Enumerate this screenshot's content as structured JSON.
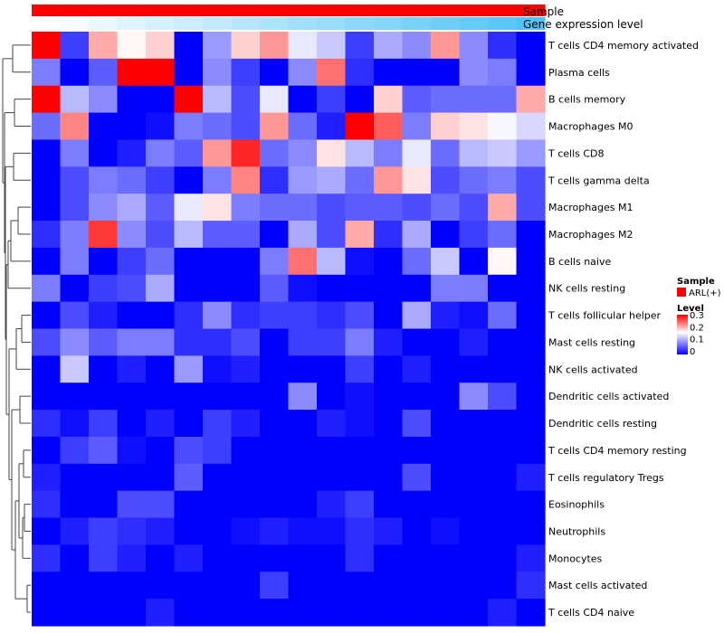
{
  "chart_data": {
    "type": "heatmap",
    "title": "",
    "annotation_tracks": [
      {
        "name": "Sample"
      },
      {
        "name": "Gene expression level"
      }
    ],
    "sample_group": "ARL(+)",
    "sample_color": "#ff0000",
    "gene_expression_ramp": [
      "#ffffff",
      "#4fc3f7"
    ],
    "colorscale": {
      "low": "#0000ff",
      "mid": "#ffffff",
      "high": "#ff0000",
      "min": 0,
      "max": 0.3
    },
    "legend": {
      "sample_title": "Sample",
      "sample_item": "ARL(+)",
      "level_title": "Level",
      "ticks": [
        "0.3",
        "0.2",
        "0.1",
        "0"
      ],
      "tick_values": [
        0.3,
        0.2,
        0.1,
        0
      ]
    },
    "columns": 18,
    "rows": [
      "T cells CD4 memory activated",
      "Plasma cells",
      "B cells memory",
      "Macrophages M0",
      "T cells CD8",
      "T cells gamma delta",
      "Macrophages M1",
      "Macrophages M2",
      "B cells naive",
      "NK cells resting",
      "T cells follicular helper",
      "Mast cells resting",
      "NK cells activated",
      "Dendritic cells activated",
      "Dendritic cells resting",
      "T cells CD4 memory resting",
      "T cells regulatory  Tregs",
      "Eosinophils",
      "Neutrophils",
      "Monocytes",
      "Mast cells activated",
      "T cells CD4 naive"
    ],
    "values": [
      [
        0.3,
        0.04,
        0.21,
        0.17,
        0.19,
        0.0,
        0.1,
        0.19,
        0.22,
        0.15,
        0.13,
        0.04,
        0.11,
        0.09,
        0.22,
        0.09,
        0.03,
        0.0
      ],
      [
        0.08,
        0.0,
        0.06,
        0.3,
        0.31,
        0.0,
        0.09,
        0.04,
        0.0,
        0.09,
        0.24,
        0.03,
        0.0,
        0.0,
        0.0,
        0.09,
        0.08,
        0.0
      ],
      [
        0.31,
        0.12,
        0.09,
        0.0,
        0.0,
        0.31,
        0.12,
        0.05,
        0.15,
        0.0,
        0.04,
        0.0,
        0.19,
        0.06,
        0.07,
        0.07,
        0.07,
        0.21
      ],
      [
        0.07,
        0.23,
        0.0,
        0.0,
        0.01,
        0.08,
        0.07,
        0.05,
        0.22,
        0.07,
        0.02,
        0.32,
        0.25,
        0.08,
        0.19,
        0.18,
        0.16,
        0.14
      ],
      [
        0.0,
        0.08,
        0.0,
        0.02,
        0.08,
        0.06,
        0.22,
        0.28,
        0.07,
        0.09,
        0.18,
        0.12,
        0.08,
        0.15,
        0.07,
        0.12,
        0.13,
        0.1
      ],
      [
        0.0,
        0.05,
        0.08,
        0.07,
        0.04,
        0.0,
        0.08,
        0.23,
        0.03,
        0.1,
        0.11,
        0.07,
        0.22,
        0.18,
        0.05,
        0.07,
        0.08,
        0.05
      ],
      [
        0.0,
        0.05,
        0.09,
        0.11,
        0.06,
        0.15,
        0.18,
        0.08,
        0.07,
        0.07,
        0.05,
        0.06,
        0.06,
        0.05,
        0.07,
        0.05,
        0.21,
        0.05
      ],
      [
        0.03,
        0.08,
        0.27,
        0.09,
        0.05,
        0.12,
        0.06,
        0.06,
        0.0,
        0.11,
        0.05,
        0.21,
        0.03,
        0.11,
        0.0,
        0.04,
        0.07,
        0.0
      ],
      [
        0.0,
        0.08,
        0.0,
        0.04,
        0.07,
        0.0,
        0.0,
        0.0,
        0.08,
        0.24,
        0.12,
        0.01,
        0.0,
        0.07,
        0.13,
        0.0,
        0.17,
        0.0
      ],
      [
        0.08,
        0.0,
        0.04,
        0.05,
        0.11,
        0.0,
        0.0,
        0.0,
        0.06,
        0.01,
        0.0,
        0.0,
        0.0,
        0.0,
        0.08,
        0.08,
        0.0,
        0.0
      ],
      [
        0.0,
        0.05,
        0.02,
        0.0,
        0.0,
        0.03,
        0.09,
        0.03,
        0.04,
        0.04,
        0.03,
        0.05,
        0.0,
        0.11,
        0.02,
        0.01,
        0.07,
        0.0
      ],
      [
        0.05,
        0.09,
        0.06,
        0.08,
        0.08,
        0.03,
        0.03,
        0.05,
        0.0,
        0.04,
        0.04,
        0.08,
        0.02,
        0.0,
        0.0,
        0.02,
        0.0,
        0.0
      ],
      [
        0.0,
        0.13,
        0.0,
        0.02,
        0.0,
        0.1,
        0.01,
        0.02,
        0.0,
        0.0,
        0.0,
        0.04,
        0.0,
        0.02,
        0.0,
        0.0,
        0.0,
        0.0
      ],
      [
        0.0,
        0.0,
        0.0,
        0.0,
        0.0,
        0.0,
        0.0,
        0.0,
        0.0,
        0.09,
        0.0,
        0.01,
        0.0,
        0.0,
        0.0,
        0.09,
        0.05,
        0.0
      ],
      [
        0.03,
        0.01,
        0.04,
        0.0,
        0.02,
        0.0,
        0.04,
        0.02,
        0.0,
        0.0,
        0.02,
        0.01,
        0.0,
        0.05,
        0.0,
        0.0,
        0.0,
        0.0
      ],
      [
        0.0,
        0.04,
        0.06,
        0.01,
        0.0,
        0.05,
        0.04,
        0.0,
        0.0,
        0.0,
        0.0,
        0.0,
        0.0,
        0.0,
        0.0,
        0.0,
        0.0,
        0.0
      ],
      [
        0.02,
        0.0,
        0.0,
        0.0,
        0.0,
        0.06,
        0.0,
        0.0,
        0.0,
        0.0,
        0.0,
        0.0,
        0.0,
        0.05,
        0.0,
        0.0,
        0.0,
        0.02
      ],
      [
        0.03,
        0.0,
        0.0,
        0.05,
        0.05,
        0.0,
        0.0,
        0.0,
        0.0,
        0.0,
        0.02,
        0.04,
        0.0,
        0.0,
        0.0,
        0.0,
        0.0,
        0.0
      ],
      [
        0.0,
        0.02,
        0.04,
        0.03,
        0.02,
        0.0,
        0.0,
        0.01,
        0.02,
        0.01,
        0.01,
        0.03,
        0.02,
        0.0,
        0.01,
        0.0,
        0.0,
        0.0
      ],
      [
        0.03,
        0.0,
        0.04,
        0.02,
        0.0,
        0.02,
        0.0,
        0.0,
        0.0,
        0.0,
        0.0,
        0.03,
        0.0,
        0.0,
        0.0,
        0.0,
        0.0,
        0.02
      ],
      [
        0.0,
        0.0,
        0.0,
        0.0,
        0.0,
        0.0,
        0.0,
        0.0,
        0.04,
        0.0,
        0.0,
        0.0,
        0.0,
        0.0,
        0.0,
        0.0,
        0.0,
        0.03
      ],
      [
        0.0,
        0.0,
        0.0,
        0.0,
        0.02,
        0.0,
        0.0,
        0.0,
        0.0,
        0.0,
        0.0,
        0.0,
        0.0,
        0.0,
        0.0,
        0.0,
        0.02,
        0.0
      ]
    ]
  }
}
